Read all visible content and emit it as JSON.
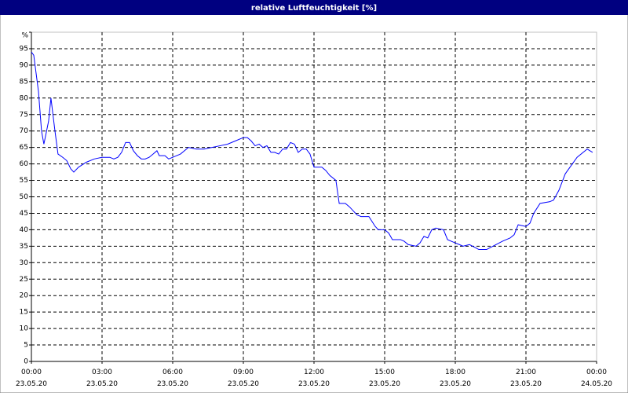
{
  "chart_data": {
    "type": "line",
    "title": "relative Luftfeuchtigkeit [%]",
    "xlim": [
      0,
      24
    ],
    "xticks": [
      {
        "value": 0,
        "label": "00:00 23.05.20"
      },
      {
        "value": 3,
        "label": "03:00 23.05.20"
      },
      {
        "value": 6,
        "label": "06:00 23.05.20"
      },
      {
        "value": 9,
        "label": "09:00 23.05.20"
      },
      {
        "value": 12,
        "label": "12:00 23.05.20"
      },
      {
        "value": 15,
        "label": "15:00 23.05.20"
      },
      {
        "value": 18,
        "label": "18:00 23.05.20"
      },
      {
        "value": 21,
        "label": "21:00 23.05.20"
      },
      {
        "value": 24,
        "label": "00:00 24.05.20"
      }
    ],
    "ylim": [
      0,
      100
    ],
    "yticks": [
      0,
      5,
      10,
      15,
      20,
      25,
      30,
      35,
      40,
      45,
      50,
      55,
      60,
      65,
      70,
      75,
      80,
      85,
      90,
      95,
      {
        "value": 100,
        "label": "%"
      }
    ],
    "grid": true,
    "x": [
      0,
      0.1,
      0.3,
      0.43,
      0.53,
      0.73,
      0.83,
      1,
      1.13,
      1.33,
      1.5,
      1.67,
      1.8,
      2,
      2.33,
      2.67,
      3,
      3.33,
      3.5,
      3.67,
      3.83,
      4,
      4.17,
      4.33,
      4.5,
      4.67,
      4.83,
      5,
      5.17,
      5.33,
      5.43,
      5.67,
      5.83,
      6,
      6.33,
      6.67,
      7,
      7.33,
      7.67,
      8,
      8.33,
      8.67,
      9,
      9.17,
      9.33,
      9.5,
      9.67,
      9.83,
      10,
      10.17,
      10.33,
      10.5,
      10.67,
      10.83,
      11,
      11.17,
      11.33,
      11.5,
      11.67,
      11.83,
      12,
      12.33,
      12.5,
      12.67,
      12.93,
      13.07,
      13.33,
      13.5,
      13.83,
      14,
      14.33,
      14.6,
      14.73,
      15,
      15.17,
      15.33,
      15.67,
      15.83,
      16,
      16.33,
      16.5,
      16.67,
      16.83,
      17,
      17.17,
      17.5,
      17.67,
      17.83,
      18,
      18.17,
      18.33,
      18.6,
      19,
      19.33,
      19.6,
      20,
      20.33,
      20.5,
      20.67,
      21,
      21.17,
      21.33,
      21.6,
      22,
      22.17,
      22.4,
      22.67,
      23.17,
      23.6,
      23.83
    ],
    "series": [
      {
        "color": "#0000ff",
        "values": [
          94,
          93,
          82,
          70,
          66,
          73,
          80,
          70,
          63,
          62,
          61,
          58.5,
          57.5,
          59,
          60.5,
          61.5,
          62,
          62,
          61.5,
          62,
          63.5,
          66.5,
          66.5,
          64,
          62.5,
          61.5,
          61.5,
          62,
          63,
          64,
          62.5,
          62.5,
          61.5,
          62,
          63,
          65,
          64.5,
          64.5,
          65,
          65.5,
          66,
          67,
          68,
          68,
          67,
          65.5,
          66,
          65,
          65.5,
          63.5,
          63.5,
          63,
          64.5,
          64.5,
          66.5,
          66,
          63.5,
          64.5,
          64.5,
          63,
          59,
          59,
          58,
          56.5,
          55,
          48,
          48,
          47,
          44.5,
          44,
          44,
          41,
          40,
          40,
          39,
          37,
          37,
          36.5,
          35.5,
          35,
          36,
          38,
          37.5,
          40,
          40.5,
          40,
          37,
          36.5,
          36,
          35.5,
          35,
          35.5,
          34,
          34,
          35,
          36.5,
          37.5,
          38.5,
          41.5,
          41,
          42,
          45,
          48,
          48.5,
          49,
          52,
          57,
          62,
          64.5,
          63.5
        ]
      }
    ]
  }
}
